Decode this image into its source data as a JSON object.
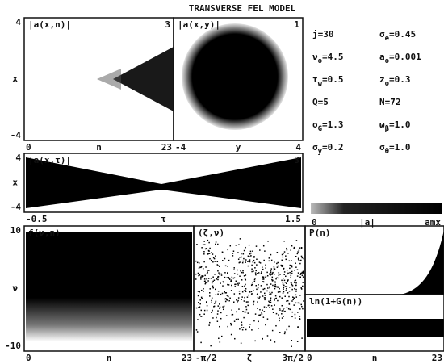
{
  "title": "TRANSVERSE FEL MODEL",
  "panels": [
    {
      "label": "|a(x,n)|",
      "corner": "3",
      "y_top": "4",
      "y_axis": "x",
      "y_bottom": "-4",
      "x_left": "0",
      "x_axis": "n",
      "x_right": "23"
    },
    {
      "label": "|a(x,y)|",
      "corner": "1",
      "x_left": "-4",
      "x_axis": "y",
      "x_right": "4"
    },
    {
      "label": "|a(x,τ)|",
      "corner": "3",
      "y_top": "4",
      "y_axis": "x",
      "y_bottom": "-4",
      "x_left": "-0.5",
      "x_axis": "τ",
      "x_right": "1.5"
    },
    {
      "label": "f(ν,n)",
      "y_top": "10",
      "y_axis": "ν",
      "y_bottom": "-10",
      "x_left": "0",
      "x_axis": "n",
      "x_right": "23"
    },
    {
      "label": "(ζ,ν)",
      "x_left": "-π/2",
      "x_axis": "ζ",
      "x_right": "3π/2"
    },
    {
      "label": "P(n)"
    },
    {
      "label": "ln(1+G(n))",
      "x_left": "0",
      "x_axis": "n",
      "x_right": "23"
    }
  ],
  "parameters": [
    {
      "symbol": "j",
      "value": "=30"
    },
    {
      "symbol": "σ",
      "sub": "e",
      "value": "=0.45"
    },
    {
      "symbol": "ν",
      "sub": "o",
      "value": "=4.5"
    },
    {
      "symbol": "a",
      "sub": "o",
      "value": "=0.001"
    },
    {
      "symbol": "τ",
      "sub": "w",
      "value": "=0.5"
    },
    {
      "symbol": "z",
      "sub": "o",
      "value": "=0.3"
    },
    {
      "symbol": "Q",
      "value": "=5"
    },
    {
      "symbol": "N",
      "value": "=72"
    },
    {
      "symbol": "σ",
      "sub": "G",
      "value": "=1.3"
    },
    {
      "symbol": "ω",
      "sub": "β",
      "value": "=1.0"
    },
    {
      "symbol": "σ",
      "sub": "y",
      "value": "=0.2"
    },
    {
      "symbol": "σ",
      "sub": "θ",
      "value": "=1.0"
    }
  ],
  "colorbar": {
    "min": "0",
    "label": "|a|",
    "max": "amx"
  }
}
